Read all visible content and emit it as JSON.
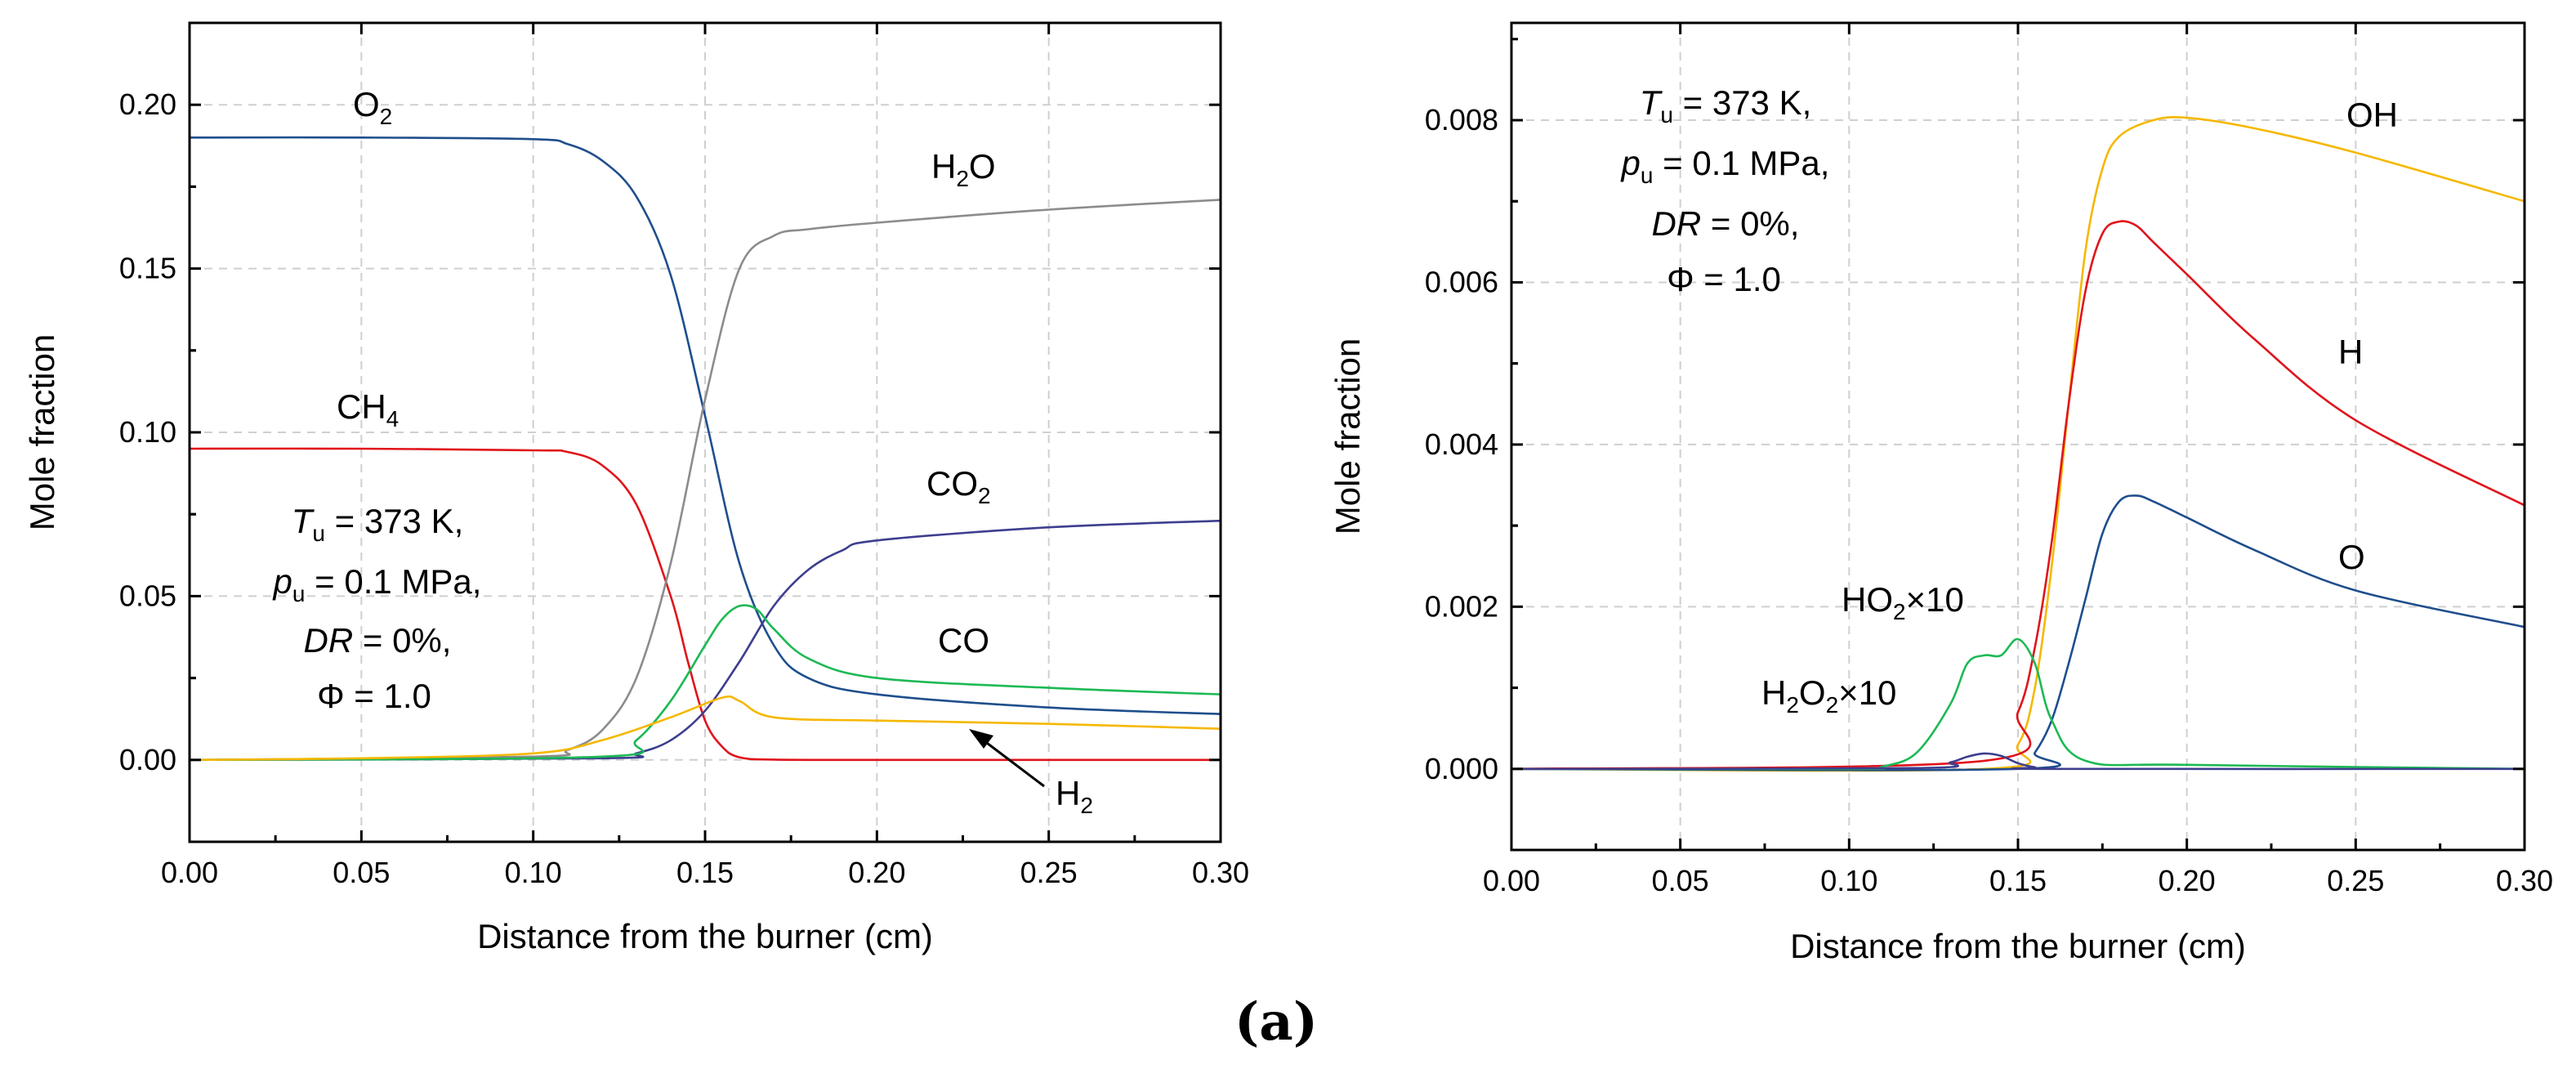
{
  "panel_label": "(a)",
  "chart_data": [
    {
      "type": "line",
      "xlabel": "Distance from the burner (cm)",
      "ylabel": "Mole fraction",
      "xlim": [
        0.0,
        0.3
      ],
      "ylim": [
        -0.025,
        0.225
      ],
      "xticks": [
        "0.00",
        "0.05",
        "0.10",
        "0.15",
        "0.20",
        "0.25",
        "0.30"
      ],
      "yticks": [
        "0.00",
        "0.05",
        "0.10",
        "0.15",
        "0.20"
      ],
      "grid": true,
      "conditions": {
        "line1_var": "T",
        "line1_sub": "u",
        "line1_val": " = 373 K,",
        "line2_var": "p",
        "line2_sub": "u",
        "line2_val": " = 0.1 MPa,",
        "line3_var": "DR",
        "line3_val": " = 0%,",
        "line4": "Φ = 1.0"
      },
      "series": [
        {
          "name": "O2",
          "label_main": "O",
          "label_sub": "2",
          "label_tail": "",
          "color": "#1f4e8c",
          "x": [
            0.0,
            0.05,
            0.1,
            0.11,
            0.12,
            0.13,
            0.14,
            0.15,
            0.16,
            0.17,
            0.18,
            0.2,
            0.25,
            0.3
          ],
          "values": [
            0.19,
            0.19,
            0.1895,
            0.188,
            0.183,
            0.172,
            0.148,
            0.105,
            0.06,
            0.035,
            0.025,
            0.02,
            0.016,
            0.014
          ]
        },
        {
          "name": "CH4",
          "label_main": "CH",
          "label_sub": "4",
          "label_tail": "",
          "color": "#e0141b",
          "x": [
            0.0,
            0.05,
            0.1,
            0.11,
            0.12,
            0.13,
            0.14,
            0.145,
            0.15,
            0.155,
            0.16,
            0.17,
            0.2,
            0.3
          ],
          "values": [
            0.095,
            0.095,
            0.0945,
            0.094,
            0.09,
            0.078,
            0.05,
            0.03,
            0.012,
            0.004,
            0.0008,
            0.0001,
            0.0,
            0.0
          ]
        },
        {
          "name": "H2O",
          "label_main": "H",
          "label_sub": "2",
          "label_tail": "O",
          "color": "#8c8c8c",
          "x": [
            0.0,
            0.1,
            0.11,
            0.12,
            0.13,
            0.14,
            0.15,
            0.16,
            0.17,
            0.18,
            0.2,
            0.25,
            0.3
          ],
          "values": [
            0.0,
            0.001,
            0.003,
            0.009,
            0.025,
            0.06,
            0.11,
            0.15,
            0.16,
            0.162,
            0.164,
            0.168,
            0.171
          ]
        },
        {
          "name": "CO2",
          "label_main": "CO",
          "label_sub": "2",
          "label_tail": "",
          "color": "#3e3e8f",
          "x": [
            0.0,
            0.12,
            0.13,
            0.14,
            0.15,
            0.16,
            0.17,
            0.18,
            0.19,
            0.2,
            0.25,
            0.3
          ],
          "values": [
            0.0,
            0.0005,
            0.002,
            0.006,
            0.015,
            0.03,
            0.047,
            0.058,
            0.064,
            0.067,
            0.071,
            0.073
          ]
        },
        {
          "name": "CO",
          "label_main": "CO",
          "label_sub": "",
          "label_tail": "",
          "color": "#1db954",
          "x": [
            0.0,
            0.12,
            0.13,
            0.14,
            0.15,
            0.155,
            0.16,
            0.165,
            0.17,
            0.18,
            0.2,
            0.25,
            0.3
          ],
          "values": [
            0.0,
            0.001,
            0.006,
            0.018,
            0.035,
            0.043,
            0.047,
            0.046,
            0.04,
            0.031,
            0.025,
            0.022,
            0.02
          ]
        },
        {
          "name": "H2",
          "label_main": "H",
          "label_sub": "2",
          "label_tail": "",
          "color": "#f5b800",
          "x": [
            0.0,
            0.05,
            0.1,
            0.12,
            0.14,
            0.155,
            0.16,
            0.17,
            0.2,
            0.25,
            0.3
          ],
          "values": [
            0.0,
            0.0005,
            0.002,
            0.006,
            0.013,
            0.019,
            0.018,
            0.013,
            0.012,
            0.011,
            0.0095
          ]
        }
      ]
    },
    {
      "type": "line",
      "xlabel": "Distance from the burner (cm)",
      "ylabel": "Mole fraction",
      "xlim": [
        0.0,
        0.3
      ],
      "ylim": [
        -0.001,
        0.0092
      ],
      "xticks": [
        "0.00",
        "0.05",
        "0.10",
        "0.15",
        "0.20",
        "0.25",
        "0.30"
      ],
      "yticks": [
        "0.000",
        "0.002",
        "0.004",
        "0.006",
        "0.008"
      ],
      "grid": true,
      "conditions": {
        "line1_var": "T",
        "line1_sub": "u",
        "line1_val": " = 373 K,",
        "line2_var": "p",
        "line2_sub": "u",
        "line2_val": " = 0.1 MPa,",
        "line3_var": "DR",
        "line3_val": " = 0%,",
        "line4": "Φ = 1.0"
      },
      "series": [
        {
          "name": "OH",
          "label_main": "OH",
          "label_sub": "",
          "label_tail": "",
          "color": "#f5b800",
          "x": [
            0.0,
            0.14,
            0.15,
            0.155,
            0.16,
            0.165,
            0.17,
            0.175,
            0.18,
            0.19,
            0.2,
            0.22,
            0.25,
            0.3
          ],
          "values": [
            0.0,
            0.0,
            0.0003,
            0.001,
            0.0025,
            0.0045,
            0.0064,
            0.0074,
            0.0078,
            0.008,
            0.00803,
            0.0079,
            0.0076,
            0.007
          ]
        },
        {
          "name": "H",
          "label_main": "H",
          "label_sub": "",
          "label_tail": "",
          "color": "#e0141b",
          "x": [
            0.0,
            0.14,
            0.15,
            0.155,
            0.16,
            0.165,
            0.17,
            0.175,
            0.18,
            0.185,
            0.19,
            0.2,
            0.22,
            0.25,
            0.3
          ],
          "values": [
            0.0,
            0.0001,
            0.0007,
            0.0015,
            0.0028,
            0.0045,
            0.0059,
            0.0066,
            0.00675,
            0.0067,
            0.0065,
            0.0061,
            0.0053,
            0.0043,
            0.00325
          ]
        },
        {
          "name": "O",
          "label_main": "O",
          "label_sub": "",
          "label_tail": "",
          "color": "#1f4e8c",
          "x": [
            0.0,
            0.15,
            0.155,
            0.16,
            0.165,
            0.17,
            0.175,
            0.18,
            0.185,
            0.19,
            0.2,
            0.22,
            0.25,
            0.3
          ],
          "values": [
            0.0,
            0.0,
            0.0002,
            0.0006,
            0.0013,
            0.0021,
            0.0029,
            0.0033,
            0.00337,
            0.0033,
            0.0031,
            0.0027,
            0.0022,
            0.00175
          ]
        },
        {
          "name": "HO2x10",
          "label_main": "HO",
          "label_sub": "2",
          "label_tail": "×10",
          "color": "#1db954",
          "x": [
            0.0,
            0.1,
            0.11,
            0.12,
            0.13,
            0.135,
            0.14,
            0.145,
            0.15,
            0.155,
            0.16,
            0.17,
            0.2,
            0.3
          ],
          "values": [
            0.0,
            0.0,
            3e-05,
            0.0002,
            0.0008,
            0.0013,
            0.0014,
            0.0014,
            0.0016,
            0.0013,
            0.0006,
            0.0001,
            5e-05,
            0.0
          ]
        },
        {
          "name": "H2O2x10",
          "label_main": "H",
          "label_sub": "2",
          "label_tail": "O",
          "label_sub2": "2",
          "label_tail2": "×10",
          "color": "#3e3e8f",
          "x": [
            0.0,
            0.12,
            0.13,
            0.135,
            0.14,
            0.145,
            0.15,
            0.155,
            0.16,
            0.3
          ],
          "values": [
            0.0,
            1e-05,
            8e-05,
            0.00015,
            0.00019,
            0.00016,
            7e-05,
            2e-05,
            0.0,
            0.0
          ]
        }
      ]
    }
  ]
}
